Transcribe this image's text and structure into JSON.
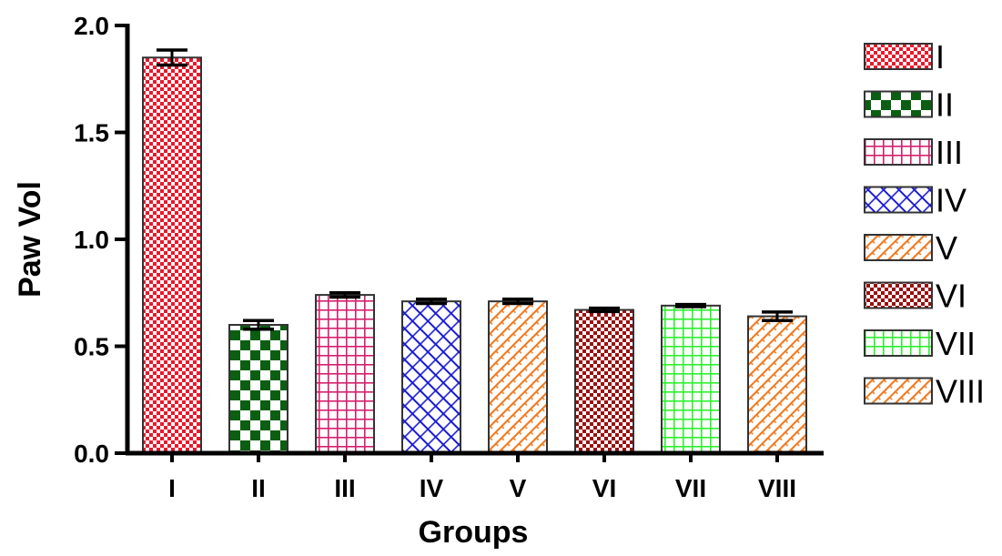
{
  "chart_data": {
    "type": "bar",
    "xlabel": "Groups",
    "ylabel": "Paw Vol",
    "ylim": [
      0,
      2.0
    ],
    "yticks": [
      "0.0",
      "0.5",
      "1.0",
      "1.5",
      "2.0"
    ],
    "ytick_values": [
      0,
      0.5,
      1.0,
      1.5,
      2.0
    ],
    "categories": [
      "I",
      "II",
      "III",
      "IV",
      "V",
      "VI",
      "VII",
      "VIII"
    ],
    "values": [
      1.85,
      0.6,
      0.74,
      0.71,
      0.71,
      0.67,
      0.69,
      0.64
    ],
    "errors": [
      0.035,
      0.02,
      0.01,
      0.01,
      0.01,
      0.008,
      0.005,
      0.02
    ],
    "legend": [
      "I",
      "II",
      "III",
      "IV",
      "V",
      "VI",
      "VII",
      "VIII"
    ],
    "legend_position": "right",
    "grid": false,
    "colors": [
      "#e8192c",
      "#0b5e12",
      "#d4206e",
      "#1a1ad4",
      "#f07a20",
      "#9a1010",
      "#2ef02e",
      "#f07a20"
    ],
    "patterns": [
      "small-checker",
      "large-checker",
      "grid",
      "diagonal-brick",
      "diagonal-hatch",
      "small-checker",
      "grid",
      "diagonal-hatch"
    ]
  }
}
